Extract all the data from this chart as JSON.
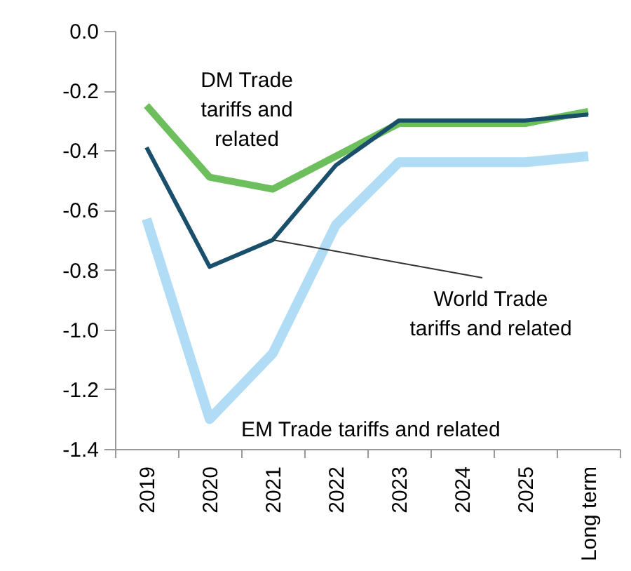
{
  "chart_data": {
    "type": "line",
    "categories": [
      "2019",
      "2020",
      "2021",
      "2022",
      "2023",
      "2024",
      "2025",
      "Long term"
    ],
    "series": [
      {
        "name": "DM Trade tariffs and related",
        "color": "#6cbf5c",
        "values": [
          -0.25,
          -0.49,
          -0.53,
          -0.42,
          -0.31,
          -0.31,
          -0.31,
          -0.27
        ]
      },
      {
        "name": "World Trade tariffs and related",
        "color": "#1a4f6b",
        "values": [
          -0.39,
          -0.79,
          -0.7,
          -0.45,
          -0.3,
          -0.3,
          -0.3,
          -0.28
        ]
      },
      {
        "name": "EM Trade tariffs and related",
        "color": "#b0dcf5",
        "values": [
          -0.63,
          -1.3,
          -1.08,
          -0.65,
          -0.44,
          -0.44,
          -0.44,
          -0.42
        ]
      }
    ],
    "ylim": [
      -1.4,
      0
    ],
    "yticks": [
      {
        "value": 0,
        "label": "0.0"
      },
      -0.2,
      -0.4,
      -0.6,
      -0.8,
      {
        "value": -1,
        "label": "-1.0"
      },
      -1.2,
      -1.4
    ],
    "grid": false
  }
}
